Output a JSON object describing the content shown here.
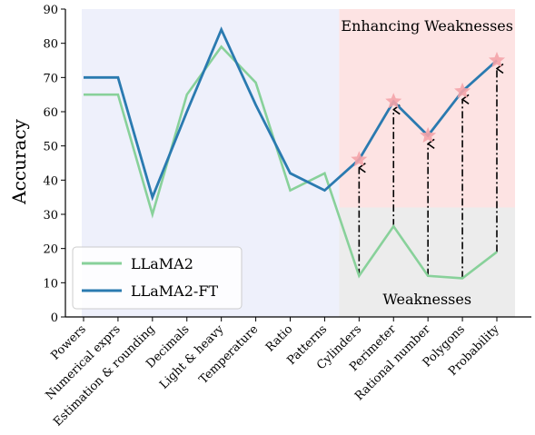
{
  "chart_data": {
    "type": "line",
    "categories": [
      "Powers",
      "Numerical exprs",
      "Estimation & rounding",
      "Decimals",
      "Light & heavy",
      "Temperature",
      "Ratio",
      "Patterns",
      "Cylinders",
      "Perimeter",
      "Rational number",
      "Polygons",
      "Probability"
    ],
    "series": [
      {
        "name": "LLaMA2",
        "color": "#88d19a",
        "values": [
          65,
          65,
          30,
          65,
          79,
          68.5,
          37,
          42,
          12,
          26.5,
          12,
          11.3,
          19
        ]
      },
      {
        "name": "LLaMA2-FT",
        "color": "#2a7ab0",
        "values": [
          70,
          70,
          35,
          60,
          84,
          62,
          42,
          37,
          46,
          63,
          53,
          66,
          75
        ]
      }
    ],
    "ylabel": "Accuracy",
    "xlabel": "",
    "ylim": [
      0,
      90
    ],
    "yticks": [
      0,
      10,
      20,
      30,
      40,
      50,
      60,
      70,
      80,
      90
    ],
    "grid": false,
    "legend": {
      "position": "lower-left",
      "entries": [
        "LLaMA2",
        "LLaMA2-FT"
      ]
    },
    "regions": [
      {
        "label": "",
        "x_range": [
          "Powers",
          "Patterns"
        ],
        "y_range": [
          0,
          90
        ],
        "color": "#eef0fb"
      },
      {
        "label": "Enhancing Weaknesses",
        "x_range": [
          "Patterns",
          "Probability"
        ],
        "y_range": [
          32,
          90
        ],
        "color": "#fde3e3"
      },
      {
        "label": "Weaknesses",
        "x_range": [
          "Patterns",
          "Probability"
        ],
        "y_range": [
          0,
          32
        ],
        "color": "#ececec"
      }
    ],
    "markers": {
      "shape": "star",
      "color": "#f4a3a8",
      "on_series": "LLaMA2-FT",
      "categories": [
        "Cylinders",
        "Perimeter",
        "Rational number",
        "Polygons",
        "Probability"
      ]
    },
    "arrows": {
      "style": "dash-dot",
      "color": "#000000",
      "from_series": "LLaMA2",
      "to_series": "LLaMA2-FT",
      "categories": [
        "Cylinders",
        "Perimeter",
        "Rational number",
        "Polygons",
        "Probability"
      ]
    }
  }
}
